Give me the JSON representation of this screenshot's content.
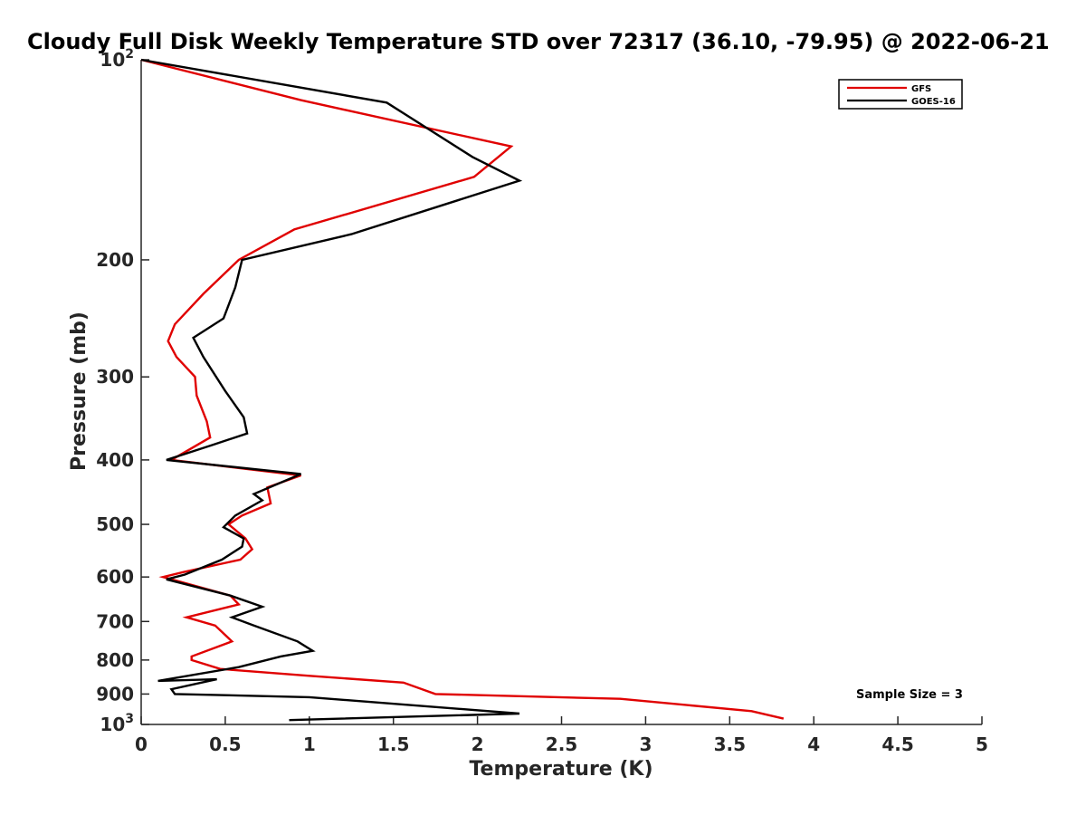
{
  "chart_data": {
    "type": "line",
    "title": "Cloudy Full Disk Weekly Temperature STD over 72317 (36.10, -79.95) @ 2022-06-21",
    "xlabel": "Temperature (K)",
    "ylabel": "Pressure (mb)",
    "xlim": [
      0,
      5
    ],
    "ylim": [
      100,
      1000
    ],
    "y_scale": "log",
    "y_reversed": true,
    "grid": false,
    "legend_position": "top-right",
    "x_ticks": [
      "0",
      "0.5",
      "1",
      "1.5",
      "2",
      "2.5",
      "3",
      "3.5",
      "4",
      "4.5",
      "5"
    ],
    "y_ticks": [
      {
        "value": 100,
        "base": "10",
        "exp": "2"
      },
      {
        "value": 200,
        "label": "200"
      },
      {
        "value": 300,
        "label": "300"
      },
      {
        "value": 400,
        "label": "400"
      },
      {
        "value": 500,
        "label": "500"
      },
      {
        "value": 600,
        "label": "600"
      },
      {
        "value": 700,
        "label": "700"
      },
      {
        "value": 800,
        "label": "800"
      },
      {
        "value": 900,
        "label": "900"
      },
      {
        "value": 1000,
        "base": "10",
        "exp": "3"
      }
    ],
    "series": [
      {
        "name": "GFS",
        "color": "#e00000",
        "points": [
          [
            0.0,
            100
          ],
          [
            0.95,
            115
          ],
          [
            2.2,
            135
          ],
          [
            1.98,
            150
          ],
          [
            0.91,
            180
          ],
          [
            0.58,
            200
          ],
          [
            0.37,
            225
          ],
          [
            0.2,
            250
          ],
          [
            0.16,
            265
          ],
          [
            0.21,
            280
          ],
          [
            0.32,
            300
          ],
          [
            0.33,
            320
          ],
          [
            0.39,
            350
          ],
          [
            0.41,
            370
          ],
          [
            0.18,
            400
          ],
          [
            0.95,
            422
          ],
          [
            0.75,
            440
          ],
          [
            0.77,
            465
          ],
          [
            0.6,
            485
          ],
          [
            0.52,
            500
          ],
          [
            0.62,
            525
          ],
          [
            0.66,
            545
          ],
          [
            0.59,
            565
          ],
          [
            0.25,
            590
          ],
          [
            0.13,
            600
          ],
          [
            0.53,
            640
          ],
          [
            0.58,
            660
          ],
          [
            0.27,
            690
          ],
          [
            0.44,
            710
          ],
          [
            0.54,
            750
          ],
          [
            0.3,
            790
          ],
          [
            0.3,
            800
          ],
          [
            0.47,
            825
          ],
          [
            1.0,
            845
          ],
          [
            1.56,
            865
          ],
          [
            1.75,
            900
          ],
          [
            2.85,
            915
          ],
          [
            3.63,
            955
          ],
          [
            3.82,
            980
          ]
        ]
      },
      {
        "name": "GOES-16",
        "color": "#000000",
        "points": [
          [
            0.0,
            100
          ],
          [
            1.46,
            116
          ],
          [
            1.97,
            140
          ],
          [
            2.25,
            152
          ],
          [
            1.25,
            183
          ],
          [
            0.6,
            200
          ],
          [
            0.56,
            220
          ],
          [
            0.49,
            245
          ],
          [
            0.31,
            262
          ],
          [
            0.37,
            280
          ],
          [
            0.5,
            315
          ],
          [
            0.61,
            345
          ],
          [
            0.63,
            365
          ],
          [
            0.42,
            380
          ],
          [
            0.15,
            400
          ],
          [
            0.95,
            420
          ],
          [
            0.67,
            450
          ],
          [
            0.72,
            460
          ],
          [
            0.56,
            485
          ],
          [
            0.49,
            505
          ],
          [
            0.61,
            525
          ],
          [
            0.6,
            540
          ],
          [
            0.48,
            565
          ],
          [
            0.26,
            595
          ],
          [
            0.15,
            605
          ],
          [
            0.53,
            640
          ],
          [
            0.72,
            665
          ],
          [
            0.54,
            690
          ],
          [
            0.67,
            710
          ],
          [
            0.93,
            750
          ],
          [
            1.02,
            775
          ],
          [
            0.83,
            790
          ],
          [
            0.58,
            820
          ],
          [
            0.1,
            860
          ],
          [
            0.45,
            855
          ],
          [
            0.18,
            885
          ],
          [
            0.2,
            900
          ],
          [
            1.0,
            910
          ],
          [
            2.25,
            963
          ],
          [
            0.88,
            985
          ]
        ]
      }
    ],
    "annotations": [
      {
        "text": "Sample Size = 3",
        "x": 4.3,
        "y": 910
      }
    ]
  }
}
